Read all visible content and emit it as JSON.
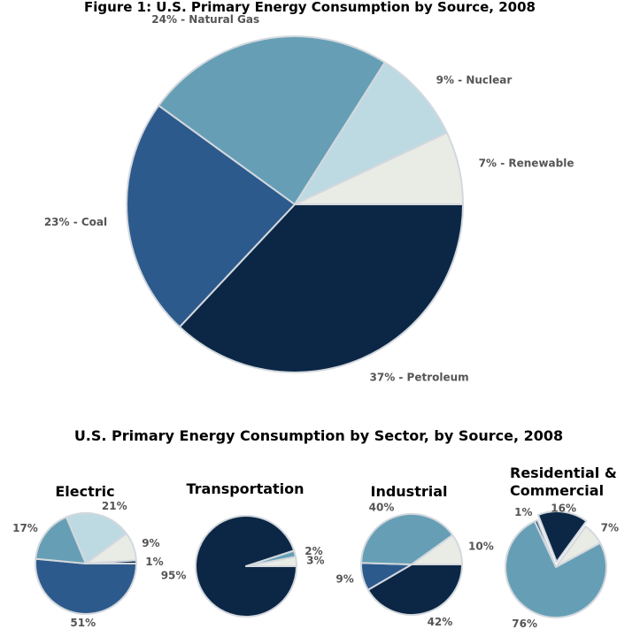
{
  "chart_data": [
    {
      "type": "pie",
      "title": "Figure 1: U.S. Primary Energy Consumption by Source, 2008",
      "slices": [
        {
          "name": "Petroleum",
          "value": 37,
          "label": "37% - Petroleum",
          "color": "#0b2745"
        },
        {
          "name": "Coal",
          "value": 23,
          "label": "23% - Coal",
          "color": "#2d5a8c"
        },
        {
          "name": "Natural Gas",
          "value": 24,
          "label": "24% - Natural Gas",
          "color": "#669fb5"
        },
        {
          "name": "Nuclear",
          "value": 9,
          "label": "9% - Nuclear",
          "color": "#bddae3"
        },
        {
          "name": "Renewable",
          "value": 7,
          "label": "7% - Renewable",
          "color": "#e9ebe5"
        }
      ]
    },
    {
      "type": "pie",
      "heading": "U.S. Primary Energy Consumption by Sector, by Source, 2008",
      "title": "Electric",
      "slices": [
        {
          "value": 51,
          "label": "51%",
          "color": "#2d5a8c"
        },
        {
          "value": 17,
          "label": "17%",
          "color": "#669fb5"
        },
        {
          "value": 21,
          "label": "21%",
          "color": "#bddae3"
        },
        {
          "value": 9,
          "label": "9%",
          "color": "#e9ebe5"
        },
        {
          "value": 1,
          "label": "1%",
          "color": "#0b2745"
        }
      ]
    },
    {
      "type": "pie",
      "title": "Transportation",
      "slices": [
        {
          "value": 95,
          "label": "95%",
          "color": "#0b2745"
        },
        {
          "value": 2,
          "label": "2%",
          "color": "#669fb5"
        },
        {
          "value": 3,
          "label": "3%",
          "color": "#e9ebe5"
        }
      ]
    },
    {
      "type": "pie",
      "title": "Industrial",
      "slices": [
        {
          "value": 42,
          "label": "42%",
          "color": "#0b2745"
        },
        {
          "value": 9,
          "label": "9%",
          "color": "#2d5a8c"
        },
        {
          "value": 40,
          "label": "40%",
          "color": "#669fb5"
        },
        {
          "value": 10,
          "label": "10%",
          "color": "#e9ebe5"
        }
      ]
    },
    {
      "type": "pie",
      "title_lines": [
        "Residential &",
        "Commercial"
      ],
      "slices": [
        {
          "value": 1,
          "label": "1%",
          "color": "#2d5a8c"
        },
        {
          "value": 16,
          "label": "16%",
          "color": "#0b2745"
        },
        {
          "value": 7,
          "label": "7%",
          "color": "#e9ebe5"
        },
        {
          "value": 76,
          "label": "76%",
          "color": "#669fb5"
        }
      ]
    }
  ]
}
